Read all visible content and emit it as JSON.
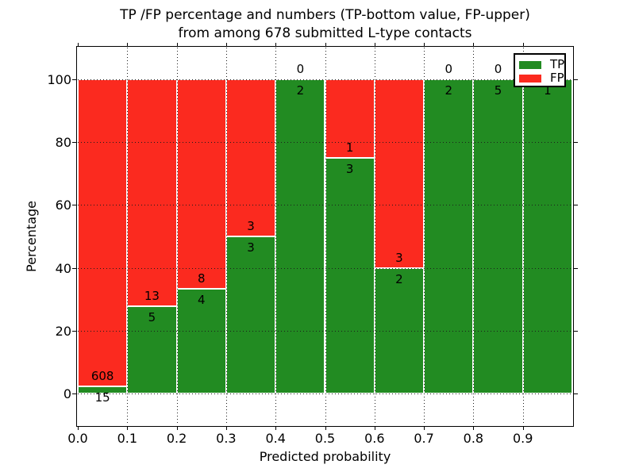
{
  "chart_data": {
    "type": "bar",
    "stacked": true,
    "title": "TP /FP percentage and numbers (TP-bottom value, FP-upper)\nfrom among 678 submitted L-type contacts",
    "title_lines": [
      "TP /FP percentage and numbers (TP-bottom value, FP-upper)",
      "from among 678 submitted L-type contacts"
    ],
    "xlabel": "Predicted probability",
    "ylabel": "Percentage",
    "total_contacts": 678,
    "bin_width": 0.1,
    "categories": [
      "0.0",
      "0.1",
      "0.2",
      "0.3",
      "0.4",
      "0.5",
      "0.6",
      "0.7",
      "0.8",
      "0.9"
    ],
    "series": [
      {
        "name": "TP",
        "color": "#228b22",
        "values": [
          15,
          5,
          4,
          3,
          2,
          3,
          2,
          2,
          5,
          1
        ]
      },
      {
        "name": "FP",
        "color": "#fb2a1f",
        "values": [
          608,
          13,
          8,
          3,
          0,
          1,
          3,
          0,
          0,
          0
        ]
      }
    ],
    "tp_percent_per_bin": [
      2.4,
      27.8,
      33.3,
      50.0,
      100.0,
      75.0,
      40.0,
      100.0,
      100.0,
      100.0
    ],
    "xticks": [
      "0.0",
      "0.1",
      "0.2",
      "0.3",
      "0.4",
      "0.5",
      "0.6",
      "0.7",
      "0.8",
      "0.9"
    ],
    "yticks": [
      "0",
      "20",
      "40",
      "60",
      "80",
      "100"
    ],
    "xlim": [
      0.0,
      1.0
    ],
    "ylim": [
      -10,
      110
    ],
    "grid": {
      "style": "dotted",
      "color": "#1c1c1c"
    },
    "legend": {
      "position": "upper right",
      "entries": [
        {
          "label": "TP",
          "color": "#228b22"
        },
        {
          "label": "FP",
          "color": "#fb2a1f"
        }
      ]
    }
  }
}
